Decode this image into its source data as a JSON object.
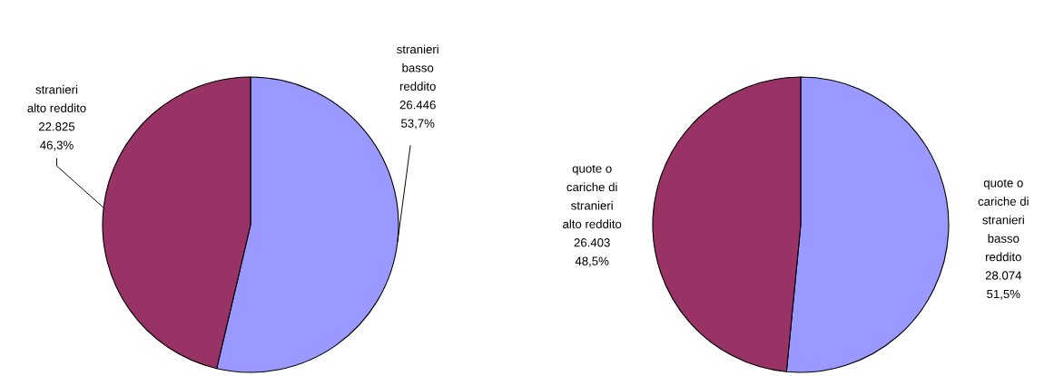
{
  "chart_data": [
    {
      "type": "pie",
      "categories": [
        "stranieri\nbasso\nreddito",
        "stranieri\nalto reddito"
      ],
      "values": [
        26446,
        22825
      ],
      "colors": [
        "#9999ff",
        "#993366"
      ],
      "value_labels": [
        "26.446\n53,7%",
        "22.825\n46,3%"
      ]
    },
    {
      "type": "pie",
      "categories": [
        "quote o\ncariche di\nstranieri\nbasso\nreddito",
        "quote o\ncariche di\nstranieri\nalto reddito"
      ],
      "values": [
        28074,
        26403
      ],
      "colors": [
        "#9999ff",
        "#993366"
      ],
      "value_labels": [
        "28.074\n51,5%",
        "26.403\n48,5%"
      ]
    }
  ]
}
